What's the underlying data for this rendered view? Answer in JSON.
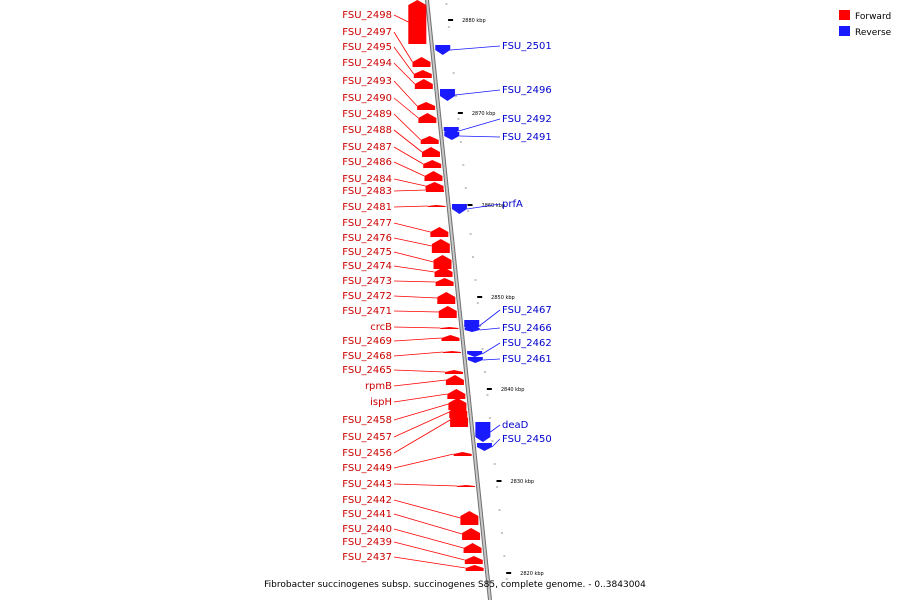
{
  "caption": "Fibrobacter succinogenes subsp. succinogenes S85, complete genome. - 0..3843004",
  "legend": [
    {
      "label": "Forward",
      "color": "#ff0000"
    },
    {
      "label": "Reverse",
      "color": "#1a1aff"
    }
  ],
  "colors": {
    "forward": "#ff0000",
    "reverse": "#1a1aff",
    "forward_label": "#cc0000",
    "reverse_label": "#0000cc",
    "backbone": "#9a9a9a"
  },
  "ticks": [
    {
      "kbp": 2880,
      "label": "2880 kbp"
    },
    {
      "kbp": 2870,
      "label": "2870 kbp"
    },
    {
      "kbp": 2860,
      "label": "2860 kbp"
    },
    {
      "kbp": 2850,
      "label": "2850 kbp"
    },
    {
      "kbp": 2840,
      "label": "2840 kbp"
    },
    {
      "kbp": 2830,
      "label": "2830 kbp"
    },
    {
      "kbp": 2820,
      "label": "2820 kbp"
    }
  ],
  "forward_genes": [
    "FSU_2498",
    "FSU_2497",
    "FSU_2495",
    "FSU_2494",
    "FSU_2493",
    "FSU_2490",
    "FSU_2489",
    "FSU_2488",
    "FSU_2487",
    "FSU_2486",
    "FSU_2484",
    "FSU_2483",
    "FSU_2481",
    "FSU_2477",
    "FSU_2476",
    "FSU_2475",
    "FSU_2474",
    "FSU_2473",
    "FSU_2472",
    "FSU_2471",
    "crcB",
    "FSU_2469",
    "FSU_2468",
    "FSU_2465",
    "rpmB",
    "ispH",
    "FSU_2458",
    "FSU_2457",
    "FSU_2456",
    "FSU_2449",
    "FSU_2443",
    "FSU_2442",
    "FSU_2441",
    "FSU_2440",
    "FSU_2439",
    "FSU_2437"
  ],
  "reverse_genes": [
    "FSU_2501",
    "FSU_2496",
    "FSU_2492",
    "FSU_2491",
    "prfA",
    "FSU_2467",
    "FSU_2466",
    "FSU_2462",
    "FSU_2461",
    "deaD",
    "FSU_2450"
  ]
}
